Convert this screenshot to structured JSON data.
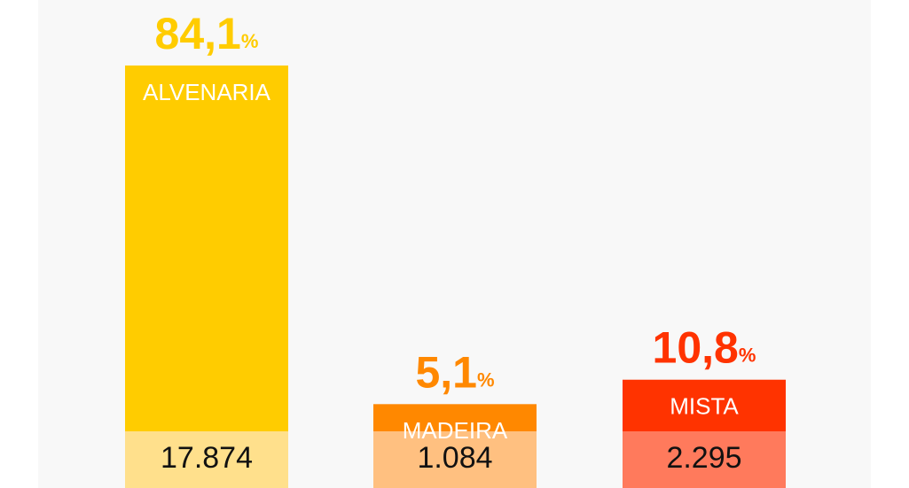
{
  "chart_data": {
    "type": "bar",
    "categories": [
      "ALVENARIA",
      "MADEIRA",
      "MISTA"
    ],
    "values": [
      84.1,
      5.1,
      10.8
    ],
    "value_labels": [
      "84,1",
      "5,1",
      "10,8"
    ],
    "unit": "%",
    "colors": [
      "#ffcc00",
      "#ff8800",
      "#ff3300"
    ],
    "counts": [
      17874,
      1084,
      2295
    ],
    "count_labels": [
      "17.874",
      "1.084",
      "2.295"
    ],
    "count_colors": [
      "#ffe08c",
      "#ffc080",
      "#ff7a5c"
    ]
  }
}
